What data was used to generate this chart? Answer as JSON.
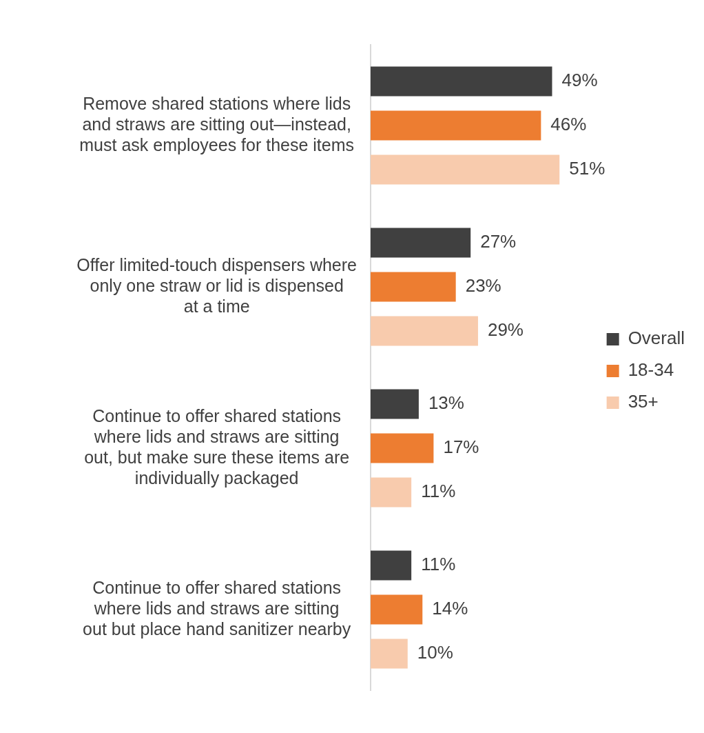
{
  "chart_data": {
    "type": "bar",
    "orientation": "horizontal",
    "categories": [
      "Remove shared stations where lids and straws are sitting out—instead, must ask employees for these items",
      "Offer limited-touch dispensers where only one straw or lid is dispensed at a time",
      "Continue to offer shared stations where lids and straws are sitting out, but make sure these items are individually packaged",
      "Continue to offer shared stations where lids and straws are sitting out but place hand sanitizer nearby"
    ],
    "series": [
      {
        "name": "Overall",
        "color": "#404040",
        "values": [
          49,
          27,
          13,
          11
        ],
        "value_labels": [
          "49%",
          "27%",
          "13%",
          "11%"
        ]
      },
      {
        "name": "18-34",
        "color": "#ed7d31",
        "values": [
          46,
          23,
          17,
          14
        ],
        "value_labels": [
          "46%",
          "23%",
          "17%",
          "14%"
        ]
      },
      {
        "name": "35+",
        "color": "#f8cbad",
        "values": [
          51,
          29,
          11,
          10
        ],
        "value_labels": [
          "51%",
          "29%",
          "11%",
          "10%"
        ]
      }
    ],
    "tick_labels": "y",
    "grid": false,
    "legend": "right"
  }
}
